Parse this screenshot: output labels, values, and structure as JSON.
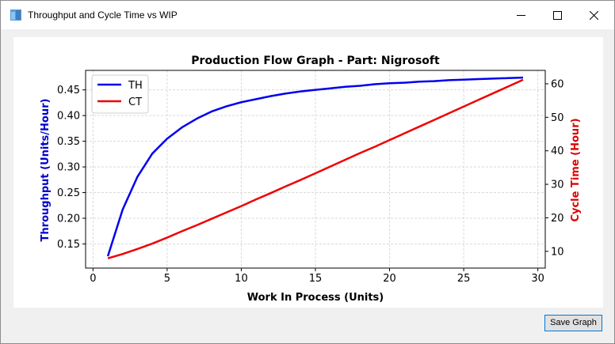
{
  "window": {
    "title": "Throughput and Cycle Time vs WIP",
    "icon": "app-window-icon",
    "controls": [
      "minimize-icon",
      "maximize-icon",
      "close-icon"
    ]
  },
  "footer": {
    "save_label": "Save Graph"
  },
  "colors": {
    "th": "#0000ee",
    "ct": "#ee0000",
    "grid": "#d9d9d9",
    "accent": "#0078d7"
  },
  "chart_data": {
    "type": "line",
    "title": "Production Flow Graph - Part: Nigrosoft",
    "xlabel": "Work In Process (Units)",
    "ylabel": "Throughput (Units/Hour)",
    "y2label": "Cycle Time (Hour)",
    "xlim": [
      -0.5,
      30.5
    ],
    "ylim": [
      0.103,
      0.488
    ],
    "y2lim": [
      5,
      64
    ],
    "xticks": [
      0,
      5,
      10,
      15,
      20,
      25,
      30
    ],
    "yticks": [
      0.15,
      0.2,
      0.25,
      0.3,
      0.35,
      0.4,
      0.45
    ],
    "y2ticks": [
      10,
      20,
      30,
      40,
      50,
      60
    ],
    "grid": true,
    "legend": "top-left",
    "x": [
      1,
      2,
      3,
      4,
      5,
      6,
      7,
      8,
      9,
      10,
      11,
      12,
      13,
      14,
      15,
      16,
      17,
      18,
      19,
      20,
      21,
      22,
      23,
      24,
      25,
      26,
      27,
      28,
      29
    ],
    "series": [
      {
        "name": "TH",
        "axis": "left",
        "values": [
          0.126,
          0.217,
          0.281,
          0.326,
          0.355,
          0.377,
          0.394,
          0.408,
          0.418,
          0.426,
          0.432,
          0.438,
          0.443,
          0.447,
          0.45,
          0.453,
          0.456,
          0.458,
          0.461,
          0.463,
          0.464,
          0.466,
          0.467,
          0.469,
          0.47,
          0.471,
          0.472,
          0.473,
          0.474
        ]
      },
      {
        "name": "CT",
        "axis": "right",
        "values": [
          7.9,
          9.2,
          10.7,
          12.3,
          14.1,
          16.0,
          17.8,
          19.7,
          21.6,
          23.5,
          25.5,
          27.4,
          29.4,
          31.3,
          33.3,
          35.3,
          37.3,
          39.3,
          41.2,
          43.2,
          45.2,
          47.2,
          49.2,
          51.2,
          53.2,
          55.2,
          57.2,
          59.2,
          61.2
        ]
      }
    ]
  }
}
